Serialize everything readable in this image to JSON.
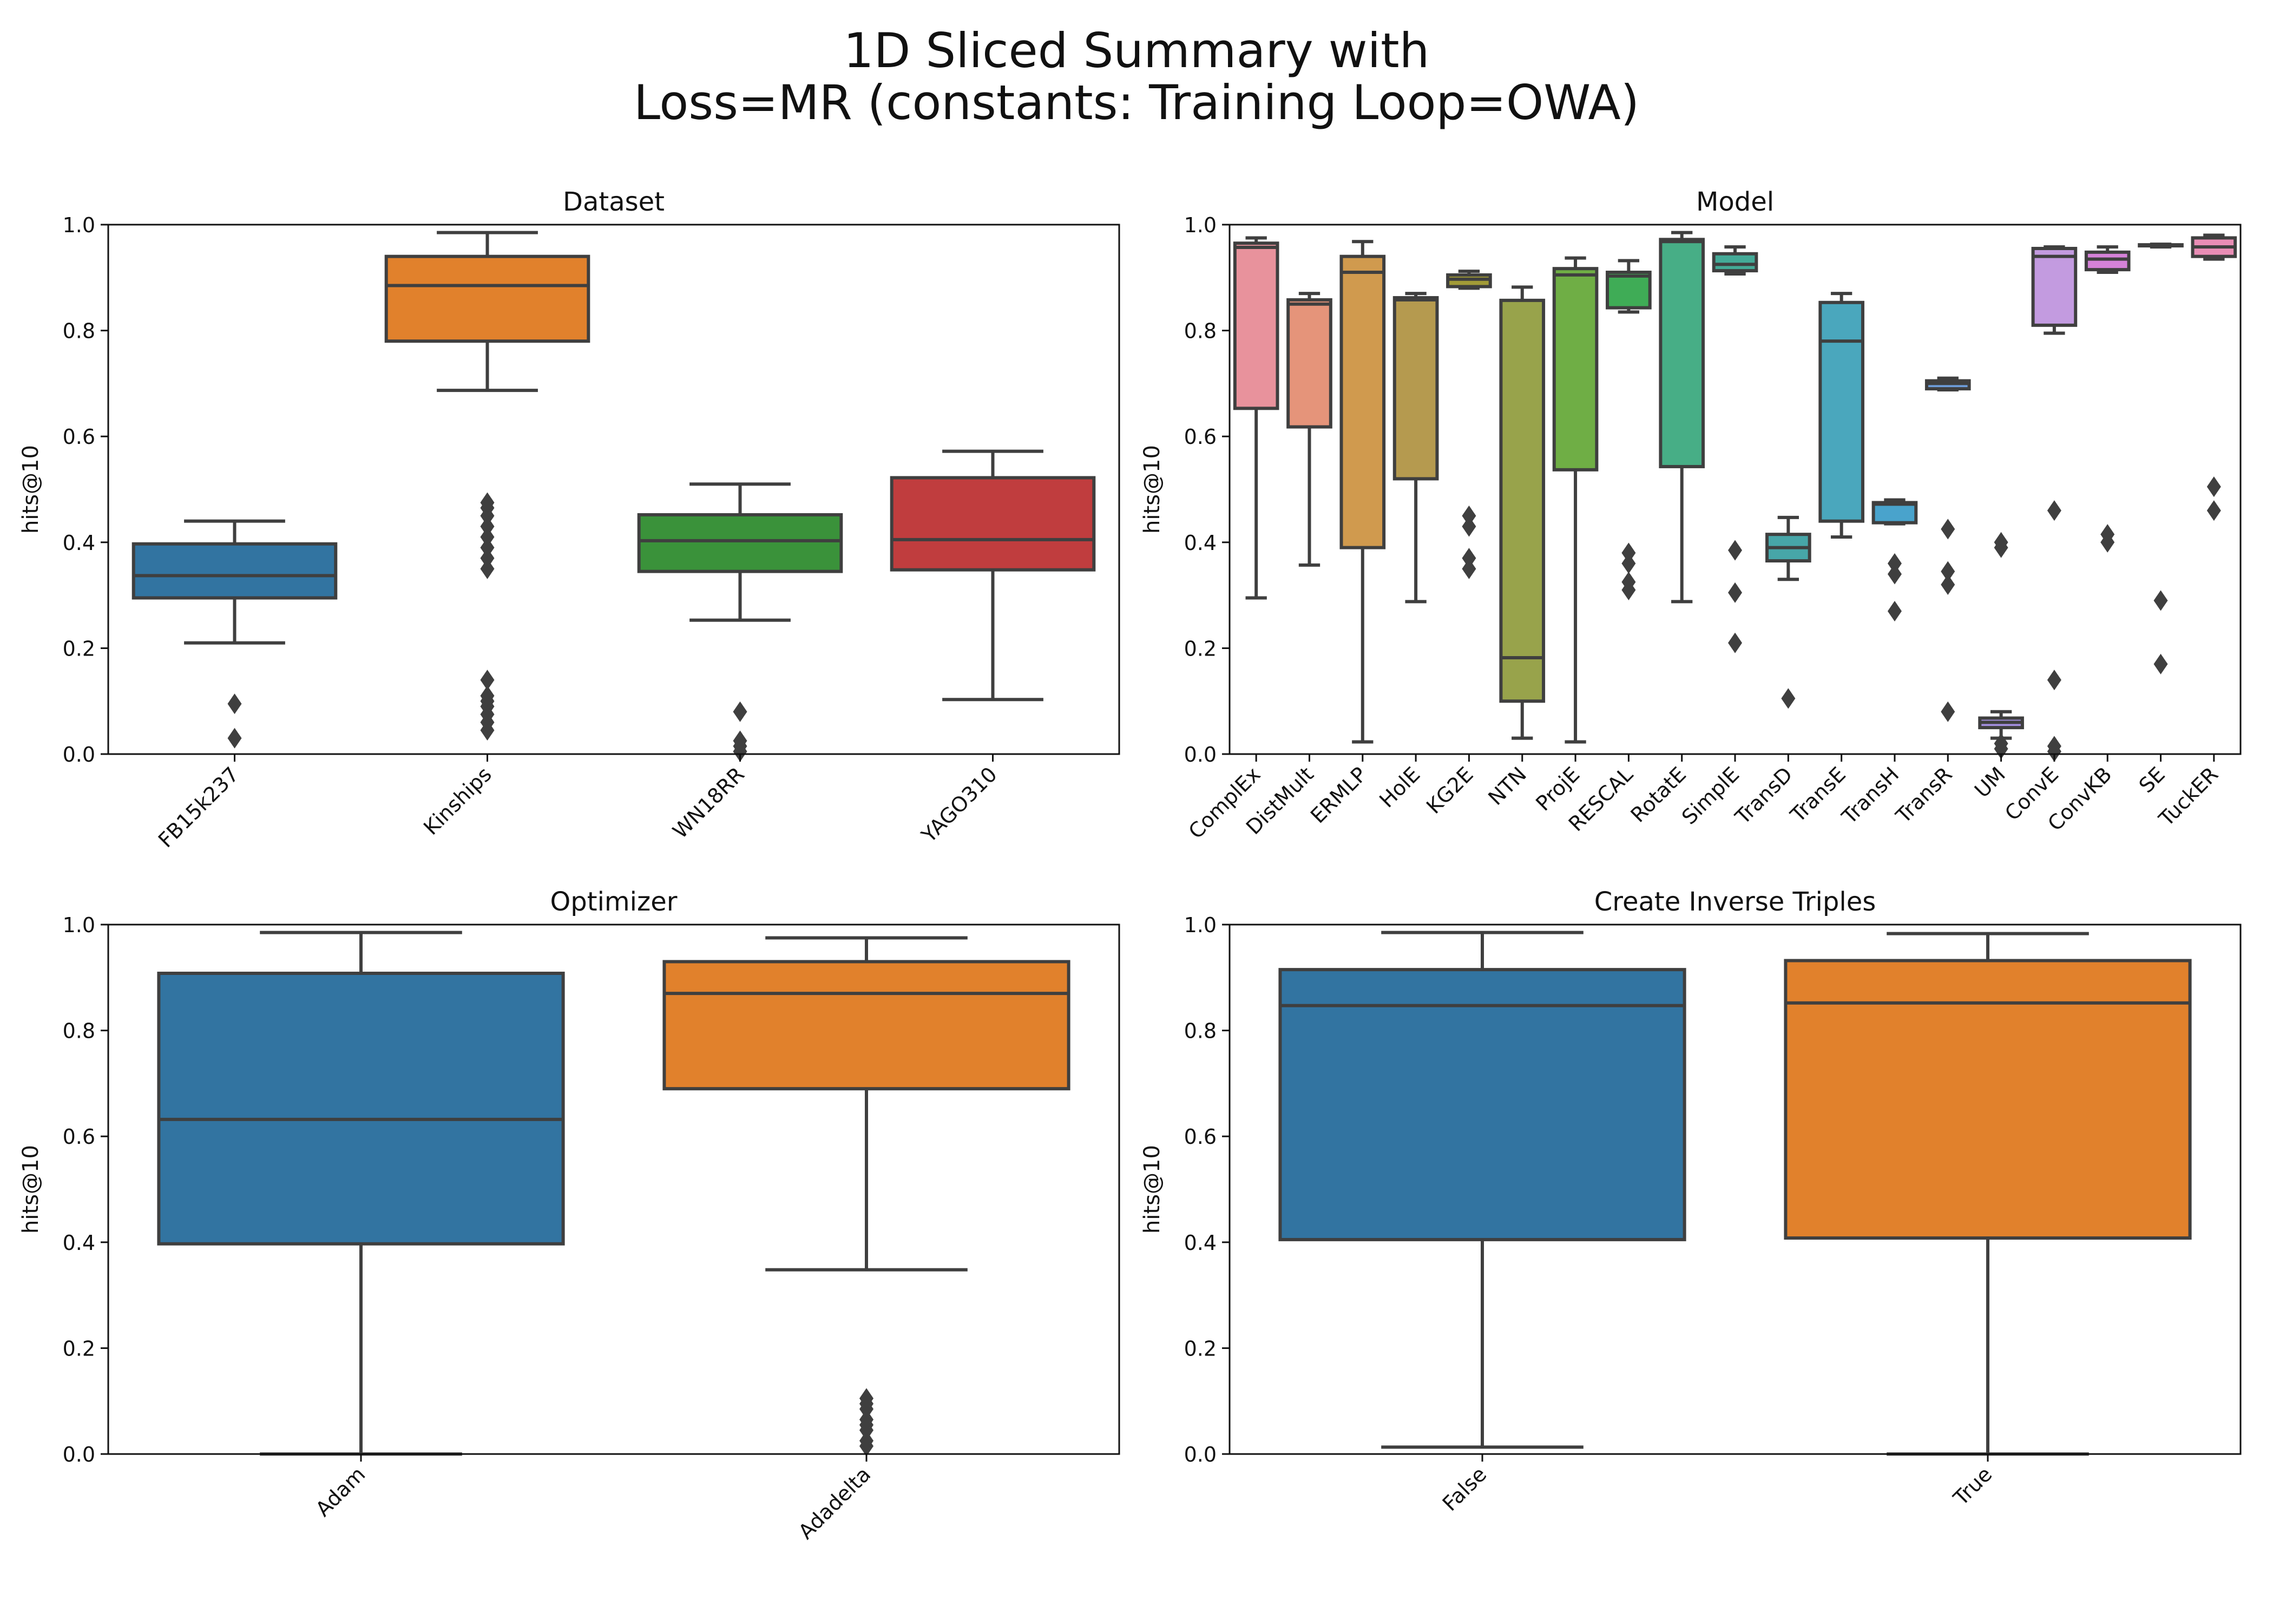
{
  "figure": {
    "title_line1": "1D Sliced Summary with",
    "title_line2": "Loss=MR (constants: Training Loop=OWA)"
  },
  "chart_data": [
    {
      "type": "box",
      "title": "Dataset",
      "xlabel": "",
      "ylabel": "hits@10",
      "ylim": [
        0,
        1.0
      ],
      "yticks": [
        0.0,
        0.2,
        0.4,
        0.6,
        0.8,
        1.0
      ],
      "categories": [
        "FB15k237",
        "Kinships",
        "WN18RR",
        "YAGO310"
      ],
      "colors": [
        "#3274a1",
        "#e1812c",
        "#3a923a",
        "#c03d3e"
      ],
      "boxes": [
        {
          "whislo": 0.21,
          "q1": 0.295,
          "median": 0.337,
          "q3": 0.397,
          "whishi": 0.44,
          "fliers": [
            0.03,
            0.095
          ]
        },
        {
          "whislo": 0.687,
          "q1": 0.78,
          "median": 0.885,
          "q3": 0.94,
          "whishi": 0.985,
          "fliers": [
            0.045,
            0.06,
            0.075,
            0.09,
            0.1,
            0.11,
            0.14,
            0.35,
            0.37,
            0.39,
            0.41,
            0.43,
            0.45,
            0.465,
            0.475
          ]
        },
        {
          "whislo": 0.253,
          "q1": 0.345,
          "median": 0.403,
          "q3": 0.452,
          "whishi": 0.51,
          "fliers": [
            0.005,
            0.015,
            0.025,
            0.08
          ]
        },
        {
          "whislo": 0.103,
          "q1": 0.348,
          "median": 0.405,
          "q3": 0.522,
          "whishi": 0.572,
          "fliers": []
        }
      ]
    },
    {
      "type": "box",
      "title": "Model",
      "xlabel": "",
      "ylabel": "hits@10",
      "ylim": [
        0,
        1.0
      ],
      "yticks": [
        0.0,
        0.2,
        0.4,
        0.6,
        0.8,
        1.0
      ],
      "categories": [
        "ComplEx",
        "DistMult",
        "ERMLP",
        "HolE",
        "KG2E",
        "NTN",
        "ProjE",
        "RESCAL",
        "RotatE",
        "SimplE",
        "TransD",
        "TransE",
        "TransH",
        "TransR",
        "UM",
        "ConvE",
        "ConvKB",
        "SE",
        "TuckER"
      ],
      "colors": [
        "#e8929c",
        "#e5947a",
        "#d09a4e",
        "#b59a4f",
        "#a29b37",
        "#98a34b",
        "#6fae45",
        "#3fac56",
        "#47ae86",
        "#44aa97",
        "#47a6a8",
        "#4aa7bd",
        "#49a3cc",
        "#6e9ddb",
        "#a38fdf",
        "#c39be0",
        "#d582d8",
        "#e278c4",
        "#e98db5"
      ],
      "boxes": [
        {
          "whislo": 0.295,
          "q1": 0.653,
          "median": 0.957,
          "q3": 0.965,
          "whishi": 0.975,
          "fliers": []
        },
        {
          "whislo": 0.357,
          "q1": 0.618,
          "median": 0.85,
          "q3": 0.858,
          "whishi": 0.87,
          "fliers": []
        },
        {
          "whislo": 0.023,
          "q1": 0.39,
          "median": 0.91,
          "q3": 0.94,
          "whishi": 0.968,
          "fliers": []
        },
        {
          "whislo": 0.288,
          "q1": 0.52,
          "median": 0.858,
          "q3": 0.862,
          "whishi": 0.87,
          "fliers": []
        },
        {
          "whislo": 0.88,
          "q1": 0.883,
          "median": 0.897,
          "q3": 0.905,
          "whishi": 0.912,
          "fliers": [
            0.35,
            0.37,
            0.43,
            0.45
          ]
        },
        {
          "whislo": 0.03,
          "q1": 0.1,
          "median": 0.182,
          "q3": 0.857,
          "whishi": 0.882,
          "fliers": []
        },
        {
          "whislo": 0.023,
          "q1": 0.537,
          "median": 0.905,
          "q3": 0.917,
          "whishi": 0.937,
          "fliers": []
        },
        {
          "whislo": 0.835,
          "q1": 0.843,
          "median": 0.903,
          "q3": 0.91,
          "whishi": 0.932,
          "fliers": [
            0.31,
            0.325,
            0.36,
            0.38
          ]
        },
        {
          "whislo": 0.288,
          "q1": 0.543,
          "median": 0.968,
          "q3": 0.972,
          "whishi": 0.985,
          "fliers": []
        },
        {
          "whislo": 0.907,
          "q1": 0.913,
          "median": 0.925,
          "q3": 0.945,
          "whishi": 0.958,
          "fliers": [
            0.21,
            0.305,
            0.385
          ]
        },
        {
          "whislo": 0.33,
          "q1": 0.365,
          "median": 0.39,
          "q3": 0.415,
          "whishi": 0.447,
          "fliers": [
            0.105
          ]
        },
        {
          "whislo": 0.41,
          "q1": 0.44,
          "median": 0.78,
          "q3": 0.853,
          "whishi": 0.87,
          "fliers": []
        },
        {
          "whislo": 0.435,
          "q1": 0.437,
          "median": 0.472,
          "q3": 0.475,
          "whishi": 0.48,
          "fliers": [
            0.27,
            0.34,
            0.36
          ]
        },
        {
          "whislo": 0.688,
          "q1": 0.69,
          "median": 0.7,
          "q3": 0.705,
          "whishi": 0.71,
          "fliers": [
            0.08,
            0.32,
            0.345,
            0.425
          ]
        },
        {
          "whislo": 0.03,
          "q1": 0.05,
          "median": 0.06,
          "q3": 0.068,
          "whishi": 0.08,
          "fliers": [
            0.01,
            0.02,
            0.39,
            0.4
          ]
        },
        {
          "whislo": 0.795,
          "q1": 0.81,
          "median": 0.94,
          "q3": 0.955,
          "whishi": 0.958,
          "fliers": [
            0.005,
            0.015,
            0.14,
            0.46
          ]
        },
        {
          "whislo": 0.91,
          "q1": 0.915,
          "median": 0.935,
          "q3": 0.948,
          "whishi": 0.958,
          "fliers": [
            0.4,
            0.415
          ]
        },
        {
          "whislo": 0.958,
          "q1": 0.96,
          "median": 0.961,
          "q3": 0.962,
          "whishi": 0.963,
          "fliers": [
            0.17,
            0.29
          ]
        },
        {
          "whislo": 0.935,
          "q1": 0.94,
          "median": 0.958,
          "q3": 0.975,
          "whishi": 0.98,
          "fliers": [
            0.46,
            0.505
          ]
        }
      ]
    },
    {
      "type": "box",
      "title": "Optimizer",
      "xlabel": "",
      "ylabel": "hits@10",
      "ylim": [
        0,
        1.0
      ],
      "yticks": [
        0.0,
        0.2,
        0.4,
        0.6,
        0.8,
        1.0
      ],
      "categories": [
        "Adam",
        "Adadelta"
      ],
      "colors": [
        "#3274a1",
        "#e1812c"
      ],
      "boxes": [
        {
          "whislo": 0.0,
          "q1": 0.397,
          "median": 0.632,
          "q3": 0.908,
          "whishi": 0.985,
          "fliers": []
        },
        {
          "whislo": 0.348,
          "q1": 0.69,
          "median": 0.87,
          "q3": 0.93,
          "whishi": 0.975,
          "fliers": [
            0.015,
            0.025,
            0.045,
            0.055,
            0.065,
            0.085,
            0.095,
            0.105
          ]
        }
      ]
    },
    {
      "type": "box",
      "title": "Create Inverse Triples",
      "xlabel": "",
      "ylabel": "hits@10",
      "ylim": [
        0,
        1.0
      ],
      "yticks": [
        0.0,
        0.2,
        0.4,
        0.6,
        0.8,
        1.0
      ],
      "categories": [
        "False",
        "True"
      ],
      "colors": [
        "#3274a1",
        "#e1812c"
      ],
      "boxes": [
        {
          "whislo": 0.013,
          "q1": 0.405,
          "median": 0.847,
          "q3": 0.915,
          "whishi": 0.985,
          "fliers": []
        },
        {
          "whislo": 0.0,
          "q1": 0.408,
          "median": 0.852,
          "q3": 0.932,
          "whishi": 0.983,
          "fliers": []
        }
      ]
    }
  ]
}
